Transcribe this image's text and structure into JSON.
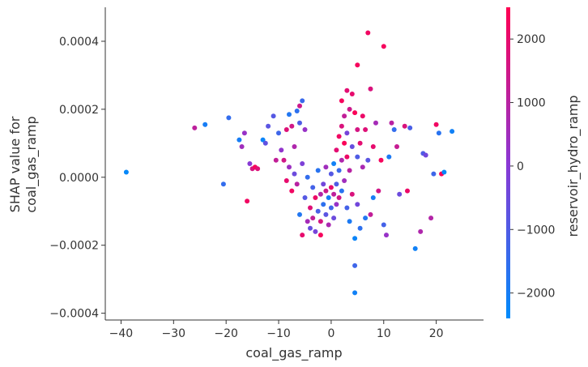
{
  "chart_data": {
    "type": "scatter",
    "title": "",
    "xlabel": "coal_gas_ramp",
    "ylabel_line1": "SHAP value for",
    "ylabel_line2": "coal_gas_ramp",
    "colorbar_label": "reservoir_hydro_ramp",
    "xlim": [
      -43,
      29
    ],
    "ylim": [
      -0.00042,
      0.0005
    ],
    "x_ticks": [
      -40,
      -30,
      -20,
      -10,
      0,
      10,
      20
    ],
    "x_tick_labels": [
      "−40",
      "−30",
      "−20",
      "−10",
      "0",
      "10",
      "20"
    ],
    "y_ticks": [
      -0.0004,
      -0.0002,
      0.0,
      0.0002,
      0.0004
    ],
    "y_tick_labels": [
      "−0.0004",
      "−0.0002",
      "0.0000",
      "0.0002",
      "0.0004"
    ],
    "colorbar_range": [
      -2400,
      2500
    ],
    "colorbar_ticks": [
      2000,
      1000,
      0,
      -1000,
      -2000
    ],
    "colorbar_tick_labels": [
      "2000",
      "1000",
      "0",
      "−1000",
      "−2000"
    ],
    "colors": {
      "low": "#008bfb",
      "mid": "#8b38d4",
      "high": "#ff0052",
      "axis": "#333333"
    },
    "grid": false,
    "legend": "none",
    "points": [
      {
        "x": -39,
        "y": 1.5e-05,
        "c": -2300
      },
      {
        "x": -26,
        "y": 0.000145,
        "c": 1100
      },
      {
        "x": -24,
        "y": 0.000155,
        "c": -2000
      },
      {
        "x": -20.5,
        "y": -2e-05,
        "c": -1500
      },
      {
        "x": -19.5,
        "y": 0.000175,
        "c": -1500
      },
      {
        "x": -17.5,
        "y": 0.00011,
        "c": -2000
      },
      {
        "x": -17,
        "y": 9e-05,
        "c": 500
      },
      {
        "x": -16.5,
        "y": 0.00013,
        "c": 300
      },
      {
        "x": -16,
        "y": -7e-05,
        "c": 2200
      },
      {
        "x": -15.5,
        "y": 4e-05,
        "c": 0
      },
      {
        "x": -15,
        "y": 2.5e-05,
        "c": 1600
      },
      {
        "x": -14.5,
        "y": 3e-05,
        "c": 2300
      },
      {
        "x": -14,
        "y": 2.5e-05,
        "c": 1800
      },
      {
        "x": -13,
        "y": 0.00011,
        "c": -2200
      },
      {
        "x": -12.5,
        "y": 0.0001,
        "c": -700
      },
      {
        "x": -12,
        "y": 0.00015,
        "c": -800
      },
      {
        "x": -11,
        "y": 0.00018,
        "c": -900
      },
      {
        "x": -10.5,
        "y": 5e-05,
        "c": 1200
      },
      {
        "x": -10,
        "y": 0.00013,
        "c": -1300
      },
      {
        "x": -9.5,
        "y": 8e-05,
        "c": 200
      },
      {
        "x": -9,
        "y": 5e-05,
        "c": 1500
      },
      {
        "x": -8.5,
        "y": 0.00014,
        "c": 1800
      },
      {
        "x": -8.5,
        "y": -1e-05,
        "c": 2000
      },
      {
        "x": -8,
        "y": 0.000185,
        "c": -1800
      },
      {
        "x": -8,
        "y": 3e-05,
        "c": 400
      },
      {
        "x": -7.5,
        "y": 0.00015,
        "c": 1500
      },
      {
        "x": -7.5,
        "y": -4e-05,
        "c": 2200
      },
      {
        "x": -7,
        "y": 9e-05,
        "c": 800
      },
      {
        "x": -7,
        "y": 1e-05,
        "c": -500
      },
      {
        "x": -6.5,
        "y": 0.000195,
        "c": -1600
      },
      {
        "x": -6.5,
        "y": -2e-05,
        "c": 1000
      },
      {
        "x": -6,
        "y": 0.00021,
        "c": 1400
      },
      {
        "x": -6,
        "y": 0.00016,
        "c": -1000
      },
      {
        "x": -6,
        "y": -0.00011,
        "c": -1800
      },
      {
        "x": -5.5,
        "y": 0.000225,
        "c": -1400
      },
      {
        "x": -5.5,
        "y": 4e-05,
        "c": -200
      },
      {
        "x": -5.5,
        "y": -0.00017,
        "c": 2000
      },
      {
        "x": -5,
        "y": 0.00014,
        "c": 300
      },
      {
        "x": -5,
        "y": -6e-05,
        "c": -900
      },
      {
        "x": -4.5,
        "y": 0.0,
        "c": -1500
      },
      {
        "x": -4.5,
        "y": -0.00013,
        "c": 600
      },
      {
        "x": -4,
        "y": -9e-05,
        "c": 1800
      },
      {
        "x": -4,
        "y": -0.00015,
        "c": -600
      },
      {
        "x": -3.5,
        "y": -3e-05,
        "c": -1200
      },
      {
        "x": -3.5,
        "y": -0.00012,
        "c": 1200
      },
      {
        "x": -3,
        "y": -6e-05,
        "c": 2100
      },
      {
        "x": -3,
        "y": -0.00016,
        "c": -300
      },
      {
        "x": -2.5,
        "y": 2e-05,
        "c": -1700
      },
      {
        "x": -2.5,
        "y": -0.0001,
        "c": -1100
      },
      {
        "x": -2,
        "y": -5e-05,
        "c": 900
      },
      {
        "x": -2,
        "y": -0.00013,
        "c": 1600
      },
      {
        "x": -2,
        "y": -0.00017,
        "c": 2300
      },
      {
        "x": -1.5,
        "y": -2e-05,
        "c": -400
      },
      {
        "x": -1.5,
        "y": -8e-05,
        "c": -1600
      },
      {
        "x": -1,
        "y": -4e-05,
        "c": 1400
      },
      {
        "x": -1,
        "y": -0.00011,
        "c": -800
      },
      {
        "x": -1,
        "y": 3e-05,
        "c": 500
      },
      {
        "x": -0.5,
        "y": -6e-05,
        "c": -2000
      },
      {
        "x": -0.5,
        "y": -0.00014,
        "c": 700
      },
      {
        "x": 0,
        "y": -3e-05,
        "c": 2000
      },
      {
        "x": 0,
        "y": -9e-05,
        "c": -1300
      },
      {
        "x": 0,
        "y": 1e-05,
        "c": -900
      },
      {
        "x": 0.5,
        "y": -5e-05,
        "c": 1100
      },
      {
        "x": 0.5,
        "y": -0.00012,
        "c": -500
      },
      {
        "x": 0.5,
        "y": 4e-05,
        "c": -2100
      },
      {
        "x": 1,
        "y": 8e-05,
        "c": 1900
      },
      {
        "x": 1,
        "y": -2e-05,
        "c": -1000
      },
      {
        "x": 1,
        "y": -8e-05,
        "c": 300
      },
      {
        "x": 1.5,
        "y": 0.00012,
        "c": 2200
      },
      {
        "x": 1.5,
        "y": 2e-05,
        "c": -1400
      },
      {
        "x": 1.5,
        "y": -6e-05,
        "c": 1500
      },
      {
        "x": 2,
        "y": 0.000225,
        "c": 2300
      },
      {
        "x": 2,
        "y": 0.00015,
        "c": 1700
      },
      {
        "x": 2,
        "y": 5e-05,
        "c": 800
      },
      {
        "x": 2,
        "y": -4e-05,
        "c": -1700
      },
      {
        "x": 2.5,
        "y": 0.00018,
        "c": 1200
      },
      {
        "x": 2.5,
        "y": 0.0001,
        "c": 2400
      },
      {
        "x": 2.5,
        "y": -1e-05,
        "c": 500
      },
      {
        "x": 3,
        "y": 0.000255,
        "c": 1900
      },
      {
        "x": 3,
        "y": 0.00013,
        "c": -300
      },
      {
        "x": 3,
        "y": 6e-05,
        "c": 2100
      },
      {
        "x": 3,
        "y": -9e-05,
        "c": -1200
      },
      {
        "x": 3.5,
        "y": 0.0002,
        "c": 1400
      },
      {
        "x": 3.5,
        "y": 2e-05,
        "c": 1000
      },
      {
        "x": 3.5,
        "y": -0.00013,
        "c": -1900
      },
      {
        "x": 4,
        "y": 0.000245,
        "c": 2000
      },
      {
        "x": 4,
        "y": 9e-05,
        "c": -600
      },
      {
        "x": 4,
        "y": -5e-05,
        "c": 1700
      },
      {
        "x": 4.5,
        "y": 0.00019,
        "c": 2400
      },
      {
        "x": 4.5,
        "y": -0.00018,
        "c": -2200
      },
      {
        "x": 4.5,
        "y": -0.00026,
        "c": -1300
      },
      {
        "x": 4.5,
        "y": -0.00034,
        "c": -2100
      },
      {
        "x": 5,
        "y": 0.00033,
        "c": 2300
      },
      {
        "x": 5,
        "y": 0.00014,
        "c": 1600
      },
      {
        "x": 5,
        "y": 6e-05,
        "c": -1000
      },
      {
        "x": 5,
        "y": -8e-05,
        "c": -400
      },
      {
        "x": 5.5,
        "y": 0.0001,
        "c": 1900
      },
      {
        "x": 5.5,
        "y": -0.00015,
        "c": -1600
      },
      {
        "x": 6,
        "y": 0.00018,
        "c": 2100
      },
      {
        "x": 6,
        "y": 3e-05,
        "c": 700
      },
      {
        "x": 6.5,
        "y": 0.00014,
        "c": 1800
      },
      {
        "x": 6.5,
        "y": -0.00012,
        "c": -1800
      },
      {
        "x": 7,
        "y": 0.000425,
        "c": 2200
      },
      {
        "x": 7,
        "y": 5e-05,
        "c": -800
      },
      {
        "x": 7.5,
        "y": 0.00026,
        "c": 1700
      },
      {
        "x": 7.5,
        "y": -0.00011,
        "c": 1200
      },
      {
        "x": 8,
        "y": 9e-05,
        "c": 2000
      },
      {
        "x": 8,
        "y": -6e-05,
        "c": -2000
      },
      {
        "x": 8.5,
        "y": 0.00016,
        "c": 600
      },
      {
        "x": 9,
        "y": -4e-05,
        "c": 1500
      },
      {
        "x": 9.5,
        "y": 5e-05,
        "c": 2300
      },
      {
        "x": 10,
        "y": 0.000385,
        "c": 2300
      },
      {
        "x": 10,
        "y": -0.00014,
        "c": -1200
      },
      {
        "x": 10.5,
        "y": -0.00017,
        "c": 300
      },
      {
        "x": 11,
        "y": 6e-05,
        "c": -1900
      },
      {
        "x": 11.5,
        "y": 0.00016,
        "c": 1000
      },
      {
        "x": 12,
        "y": 0.00014,
        "c": -1500
      },
      {
        "x": 12.5,
        "y": 9e-05,
        "c": 1300
      },
      {
        "x": 13,
        "y": -5e-05,
        "c": -500
      },
      {
        "x": 14,
        "y": 0.00015,
        "c": 1700
      },
      {
        "x": 14.5,
        "y": -4e-05,
        "c": 2100
      },
      {
        "x": 15,
        "y": 0.000145,
        "c": -1100
      },
      {
        "x": 16,
        "y": -0.00021,
        "c": -2100
      },
      {
        "x": 17,
        "y": -0.00016,
        "c": 800
      },
      {
        "x": 17.5,
        "y": 7e-05,
        "c": -1000
      },
      {
        "x": 18,
        "y": 6.5e-05,
        "c": -400
      },
      {
        "x": 19,
        "y": -0.00012,
        "c": 900
      },
      {
        "x": 19.5,
        "y": 1e-05,
        "c": -1300
      },
      {
        "x": 20,
        "y": 0.000155,
        "c": 2200
      },
      {
        "x": 20.5,
        "y": 0.00013,
        "c": -1700
      },
      {
        "x": 21,
        "y": 1e-05,
        "c": 2400
      },
      {
        "x": 21.5,
        "y": 1.5e-05,
        "c": -2300
      },
      {
        "x": 23,
        "y": 0.000135,
        "c": -2100
      }
    ]
  }
}
